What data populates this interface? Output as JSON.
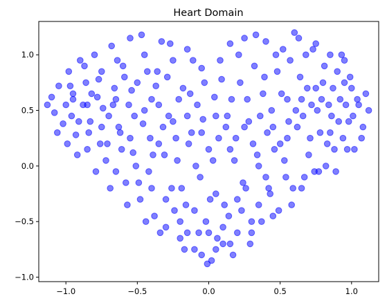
{
  "chart_data": {
    "type": "scatter",
    "title": "Heart Domain",
    "xlabel": "",
    "ylabel": "",
    "xlim": [
      -1.19,
      1.19
    ],
    "ylim": [
      -1.04,
      1.3
    ],
    "xticks": [
      -1.0,
      -0.5,
      0.0,
      0.5,
      1.0
    ],
    "yticks": [
      -1.0,
      -0.5,
      0.0,
      0.5,
      1.0
    ],
    "xtick_labels": [
      "−1.0",
      "−0.5",
      "0.0",
      "0.5",
      "1.0"
    ],
    "ytick_labels": [
      "−1.0",
      "−0.5",
      "0.0",
      "0.5",
      "1.0"
    ],
    "grid": false,
    "series": [
      {
        "color": "#0000ff",
        "alpha": 0.5,
        "points": [
          [
            -1.13,
            0.55
          ],
          [
            -1.1,
            0.62
          ],
          [
            -1.08,
            0.48
          ],
          [
            -1.05,
            0.72
          ],
          [
            -1.02,
            0.38
          ],
          [
            -1.0,
            0.55
          ],
          [
            -0.98,
            0.85
          ],
          [
            -0.96,
            0.45
          ],
          [
            -0.95,
            0.65
          ],
          [
            -0.93,
            0.28
          ],
          [
            -0.9,
            0.95
          ],
          [
            -0.88,
            0.55
          ],
          [
            -0.86,
            0.75
          ],
          [
            -0.85,
            0.15
          ],
          [
            -0.83,
            0.4
          ],
          [
            -0.8,
            1.0
          ],
          [
            -0.78,
            0.62
          ],
          [
            -0.76,
            0.2
          ],
          [
            -0.75,
            0.85
          ],
          [
            -0.72,
            0.05
          ],
          [
            -0.7,
            0.45
          ],
          [
            -0.68,
            1.08
          ],
          [
            -0.66,
            0.7
          ],
          [
            -0.65,
            -0.05
          ],
          [
            -0.62,
            0.3
          ],
          [
            -0.6,
            0.9
          ],
          [
            -0.58,
            -0.15
          ],
          [
            -0.56,
            0.55
          ],
          [
            -0.55,
            1.15
          ],
          [
            -0.53,
            0.12
          ],
          [
            -0.5,
            0.75
          ],
          [
            -0.48,
            -0.3
          ],
          [
            -0.46,
            0.38
          ],
          [
            -0.45,
            1.0
          ],
          [
            -0.42,
            -0.05
          ],
          [
            -0.4,
            0.6
          ],
          [
            -0.38,
            -0.45
          ],
          [
            -0.36,
            0.85
          ],
          [
            -0.35,
            0.2
          ],
          [
            -0.33,
            1.12
          ],
          [
            -0.3,
            -0.55
          ],
          [
            -0.28,
            0.45
          ],
          [
            -0.26,
            -0.2
          ],
          [
            -0.25,
            0.95
          ],
          [
            -0.22,
            0.05
          ],
          [
            -0.2,
            -0.65
          ],
          [
            -0.18,
            0.7
          ],
          [
            -0.16,
            -0.35
          ],
          [
            -0.15,
            1.05
          ],
          [
            -0.12,
            0.3
          ],
          [
            -0.1,
            -0.75
          ],
          [
            -0.08,
            0.55
          ],
          [
            -0.06,
            -0.1
          ],
          [
            -0.05,
            0.88
          ],
          [
            -0.02,
            -0.5
          ],
          [
            0.0,
            0.15
          ],
          [
            0.02,
            -0.85
          ],
          [
            0.04,
            0.62
          ],
          [
            0.05,
            -0.25
          ],
          [
            0.08,
            0.95
          ],
          [
            0.1,
            -0.7
          ],
          [
            0.12,
            0.35
          ],
          [
            0.14,
            -0.45
          ],
          [
            0.15,
            1.1
          ],
          [
            0.18,
            0.05
          ],
          [
            0.2,
            -0.6
          ],
          [
            0.22,
            0.75
          ],
          [
            0.24,
            -0.15
          ],
          [
            0.25,
            1.15
          ],
          [
            0.28,
            0.4
          ],
          [
            0.3,
            -0.5
          ],
          [
            0.32,
            0.9
          ],
          [
            0.34,
            0.1
          ],
          [
            0.35,
            -0.35
          ],
          [
            0.38,
            0.65
          ],
          [
            0.4,
            1.12
          ],
          [
            0.42,
            -0.2
          ],
          [
            0.44,
            0.5
          ],
          [
            0.45,
            -0.45
          ],
          [
            0.48,
            0.85
          ],
          [
            0.5,
            0.2
          ],
          [
            0.52,
            1.05
          ],
          [
            0.54,
            -0.1
          ],
          [
            0.55,
            0.6
          ],
          [
            0.58,
            -0.35
          ],
          [
            0.6,
            1.2
          ],
          [
            0.62,
            0.35
          ],
          [
            0.64,
            0.8
          ],
          [
            0.65,
            -0.2
          ],
          [
            0.68,
            1.0
          ],
          [
            0.7,
            0.1
          ],
          [
            0.72,
            0.55
          ],
          [
            0.74,
            -0.05
          ],
          [
            0.75,
            1.1
          ],
          [
            0.78,
            0.3
          ],
          [
            0.8,
            0.75
          ],
          [
            0.82,
            0.0
          ],
          [
            0.85,
            1.0
          ],
          [
            0.86,
            0.45
          ],
          [
            0.88,
            0.15
          ],
          [
            0.9,
            0.85
          ],
          [
            0.92,
            0.6
          ],
          [
            0.94,
            0.25
          ],
          [
            0.95,
            0.95
          ],
          [
            0.98,
            0.4
          ],
          [
            1.0,
            0.7
          ],
          [
            1.02,
            0.15
          ],
          [
            1.05,
            0.55
          ],
          [
            1.08,
            0.35
          ],
          [
            1.12,
            0.5
          ],
          [
            -1.06,
            0.3
          ],
          [
            -0.99,
            0.2
          ],
          [
            -0.92,
            0.1
          ],
          [
            -0.87,
            0.9
          ],
          [
            -0.82,
            0.65
          ],
          [
            -0.79,
            -0.05
          ],
          [
            -0.74,
            0.52
          ],
          [
            -0.69,
            -0.2
          ],
          [
            -0.64,
            0.95
          ],
          [
            -0.61,
            0.15
          ],
          [
            -0.57,
            -0.35
          ],
          [
            -0.54,
            0.68
          ],
          [
            -0.51,
            0.0
          ],
          [
            -0.47,
            1.18
          ],
          [
            -0.44,
            -0.5
          ],
          [
            -0.41,
            0.25
          ],
          [
            -0.37,
            0.72
          ],
          [
            -0.34,
            -0.6
          ],
          [
            -0.31,
            0.1
          ],
          [
            -0.27,
            1.1
          ],
          [
            -0.24,
            -0.4
          ],
          [
            -0.21,
            0.6
          ],
          [
            -0.17,
            -0.75
          ],
          [
            -0.14,
            0.2
          ],
          [
            -0.11,
            0.95
          ],
          [
            -0.07,
            -0.6
          ],
          [
            -0.04,
            0.42
          ],
          [
            -0.01,
            -0.88
          ],
          [
            0.03,
            0.05
          ],
          [
            0.06,
            -0.65
          ],
          [
            0.09,
            0.78
          ],
          [
            0.11,
            -0.35
          ],
          [
            0.13,
            0.45
          ],
          [
            0.17,
            -0.8
          ],
          [
            0.19,
            0.25
          ],
          [
            0.21,
            1.0
          ],
          [
            0.23,
            -0.4
          ],
          [
            0.27,
            0.6
          ],
          [
            0.29,
            -0.7
          ],
          [
            0.31,
            0.2
          ],
          [
            0.33,
            1.18
          ],
          [
            0.37,
            -0.5
          ],
          [
            0.39,
            0.8
          ],
          [
            0.41,
            0.3
          ],
          [
            0.43,
            -0.25
          ],
          [
            0.47,
            1.0
          ],
          [
            0.49,
            -0.4
          ],
          [
            0.51,
            0.65
          ],
          [
            0.53,
            0.05
          ],
          [
            0.57,
            0.95
          ],
          [
            0.59,
            -0.2
          ],
          [
            0.61,
            0.5
          ],
          [
            0.63,
            1.15
          ],
          [
            0.67,
            -0.1
          ],
          [
            0.69,
            0.7
          ],
          [
            0.71,
            0.25
          ],
          [
            0.73,
            1.05
          ],
          [
            0.77,
            -0.05
          ],
          [
            0.79,
            0.6
          ],
          [
            0.81,
            0.9
          ],
          [
            0.83,
            0.2
          ],
          [
            0.87,
            0.7
          ],
          [
            0.89,
            -0.05
          ],
          [
            0.91,
            0.4
          ],
          [
            0.93,
            1.0
          ],
          [
            0.97,
            0.15
          ],
          [
            0.99,
            0.8
          ],
          [
            1.01,
            0.45
          ],
          [
            1.04,
            0.6
          ],
          [
            1.07,
            0.25
          ],
          [
            1.1,
            0.65
          ],
          [
            -0.97,
            0.72
          ],
          [
            -0.91,
            0.4
          ],
          [
            -0.84,
            0.3
          ],
          [
            -0.77,
            0.78
          ],
          [
            -0.71,
            0.2
          ],
          [
            -0.67,
            0.55
          ],
          [
            -0.63,
            0.35
          ],
          [
            -0.59,
            0.8
          ],
          [
            -0.52,
            0.45
          ],
          [
            -0.49,
            -0.15
          ],
          [
            -0.43,
            0.85
          ],
          [
            -0.39,
            0.1
          ],
          [
            -0.32,
            0.35
          ],
          [
            -0.29,
            0.8
          ],
          [
            -0.23,
            0.25
          ],
          [
            -0.19,
            -0.2
          ],
          [
            -0.13,
            0.65
          ],
          [
            -0.09,
            0.0
          ],
          [
            -0.03,
            0.75
          ],
          [
            0.01,
            -0.3
          ],
          [
            0.07,
            0.25
          ],
          [
            0.16,
            0.6
          ],
          [
            0.26,
            -0.2
          ],
          [
            0.36,
            0.45
          ],
          [
            0.46,
            0.15
          ],
          [
            0.56,
            0.4
          ],
          [
            0.66,
            0.45
          ],
          [
            0.76,
            0.5
          ],
          [
            0.84,
            0.55
          ],
          [
            0.96,
            0.55
          ],
          [
            -0.35,
            0.55
          ],
          [
            -0.25,
            0.4
          ],
          [
            -0.15,
            0.45
          ],
          [
            -0.05,
            0.3
          ],
          [
            0.05,
            0.45
          ],
          [
            0.15,
            0.15
          ],
          [
            0.25,
            0.35
          ],
          [
            0.35,
            0.0
          ],
          [
            0.45,
            0.35
          ],
          [
            -0.45,
            0.5
          ],
          [
            -0.55,
            0.25
          ],
          [
            -0.65,
            0.6
          ],
          [
            -0.75,
            0.35
          ],
          [
            -0.85,
            0.55
          ],
          [
            -0.95,
            0.6
          ],
          [
            0.55,
            0.25
          ],
          [
            0.65,
            0.6
          ],
          [
            0.75,
            0.7
          ],
          [
            0.85,
            0.3
          ],
          [
            0.95,
            0.75
          ],
          [
            -0.2,
            -0.5
          ],
          [
            -0.1,
            -0.4
          ],
          [
            0.0,
            -0.6
          ],
          [
            0.1,
            -0.55
          ],
          [
            0.2,
            -0.3
          ],
          [
            0.3,
            -0.6
          ],
          [
            -0.3,
            -0.3
          ],
          [
            -0.4,
            -0.2
          ],
          [
            0.4,
            -0.1
          ],
          [
            -0.05,
            -0.8
          ],
          [
            0.05,
            -0.75
          ],
          [
            0.15,
            -0.7
          ],
          [
            -0.15,
            -0.6
          ]
        ]
      }
    ]
  }
}
